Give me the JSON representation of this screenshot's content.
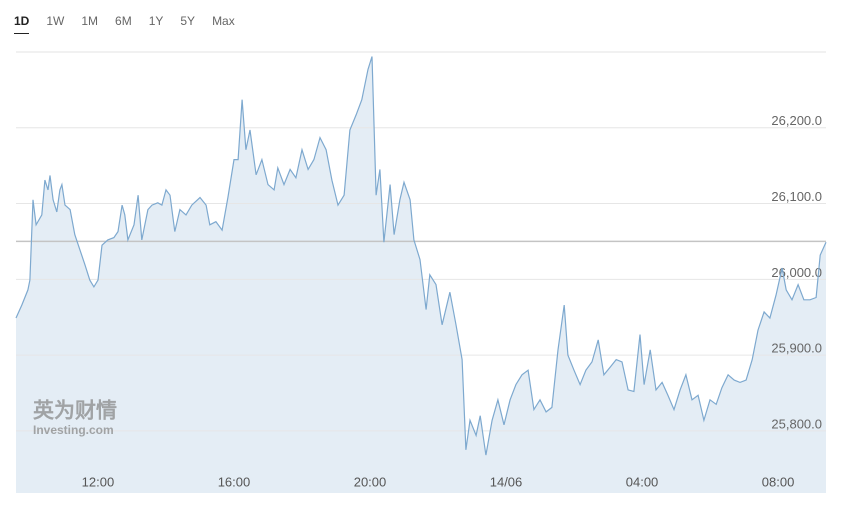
{
  "chart_data": {
    "type": "area",
    "range_options": [
      "1D",
      "1W",
      "1M",
      "6M",
      "1Y",
      "5Y",
      "Max"
    ],
    "selected_range_index": 0,
    "watermark": "英为财情",
    "watermark_sub": "Investing.com",
    "color": "#7ea9cf",
    "fill_color": "#e4edf5",
    "grid": true,
    "xlim": [
      -2.41,
      21.41
    ],
    "xticks": [
      {
        "value": 0,
        "label": "12:00"
      },
      {
        "value": 4,
        "label": "16:00"
      },
      {
        "value": 8,
        "label": "20:00"
      },
      {
        "value": 12,
        "label": "14/06"
      },
      {
        "value": 16,
        "label": "04:00"
      },
      {
        "value": 20,
        "label": "08:00"
      }
    ],
    "ylim": [
      25718,
      26300
    ],
    "yticks": [
      {
        "value": 25800,
        "label": "25,800.0"
      },
      {
        "value": 25900,
        "label": "25,900.0"
      },
      {
        "value": 26000,
        "label": "26,000.0"
      },
      {
        "value": 26100,
        "label": "26,100.0"
      },
      {
        "value": 26200,
        "label": "26,200.0"
      }
    ],
    "reference_line": 26050,
    "x": [
      -2.41,
      -2.24,
      -2.06,
      -2.0,
      -1.91,
      -1.82,
      -1.65,
      -1.56,
      -1.47,
      -1.41,
      -1.32,
      -1.21,
      -1.12,
      -1.06,
      -0.97,
      -0.82,
      -0.68,
      -0.53,
      -0.38,
      -0.24,
      -0.12,
      0,
      0.12,
      0.29,
      0.47,
      0.59,
      0.71,
      0.79,
      0.88,
      1.06,
      1.18,
      1.29,
      1.47,
      1.59,
      1.76,
      1.88,
      2.0,
      2.12,
      2.26,
      2.41,
      2.59,
      2.76,
      3.0,
      3.18,
      3.29,
      3.47,
      3.65,
      3.82,
      4.0,
      4.12,
      4.24,
      4.35,
      4.47,
      4.65,
      4.82,
      5.0,
      5.18,
      5.29,
      5.47,
      5.65,
      5.82,
      6.0,
      6.18,
      6.35,
      6.53,
      6.71,
      6.88,
      7.06,
      7.24,
      7.41,
      7.59,
      7.76,
      7.94,
      8.06,
      8.18,
      8.29,
      8.41,
      8.59,
      8.71,
      8.88,
      9.0,
      9.18,
      9.29,
      9.47,
      9.65,
      9.76,
      9.94,
      10.12,
      10.35,
      10.53,
      10.71,
      10.82,
      10.94,
      11.12,
      11.24,
      11.41,
      11.59,
      11.76,
      11.94,
      12.12,
      12.29,
      12.47,
      12.65,
      12.82,
      13.0,
      13.18,
      13.35,
      13.53,
      13.71,
      13.82,
      14.0,
      14.18,
      14.35,
      14.53,
      14.71,
      14.88,
      15.06,
      15.24,
      15.41,
      15.59,
      15.76,
      15.94,
      16.06,
      16.24,
      16.41,
      16.59,
      16.76,
      16.94,
      17.12,
      17.29,
      17.47,
      17.65,
      17.82,
      18.0,
      18.18,
      18.35,
      18.53,
      18.71,
      18.88,
      19.06,
      19.24,
      19.41,
      19.59,
      19.76,
      19.94,
      20.12,
      20.24,
      20.41,
      20.59,
      20.76,
      20.94,
      21.12,
      21.24,
      21.41
    ],
    "values": [
      25949,
      25966,
      25986,
      25999,
      26105,
      26072,
      26085,
      26131,
      26118,
      26137,
      26105,
      26089,
      26118,
      26125,
      26098,
      26092,
      26059,
      26039,
      26019,
      25999,
      25990,
      25999,
      26045,
      26052,
      26055,
      26063,
      26098,
      26085,
      26052,
      26072,
      26111,
      26052,
      26092,
      26098,
      26101,
      26098,
      26118,
      26111,
      26063,
      26092,
      26085,
      26098,
      26108,
      26098,
      26072,
      26076,
      26065,
      26108,
      26158,
      26158,
      26237,
      26171,
      26197,
      26138,
      26158,
      26125,
      26118,
      26147,
      26125,
      26145,
      26134,
      26171,
      26145,
      26158,
      26187,
      26171,
      26131,
      26098,
      26111,
      26197,
      26217,
      26237,
      26277,
      26294,
      26111,
      26145,
      26049,
      26125,
      26059,
      26105,
      26128,
      26105,
      26052,
      26026,
      25960,
      26006,
      25993,
      25940,
      25983,
      25940,
      25894,
      25775,
      25814,
      25794,
      25820,
      25768,
      25814,
      25841,
      25808,
      25841,
      25861,
      25874,
      25880,
      25828,
      25841,
      25825,
      25831,
      25907,
      25966,
      25900,
      25880,
      25861,
      25880,
      25891,
      25920,
      25874,
      25884,
      25894,
      25891,
      25854,
      25852,
      25927,
      25861,
      25907,
      25854,
      25864,
      25847,
      25828,
      25854,
      25874,
      25841,
      25847,
      25814,
      25841,
      25835,
      25857,
      25874,
      25867,
      25864,
      25867,
      25894,
      25933,
      25957,
      25949,
      25979,
      26015,
      25986,
      25973,
      25993,
      25973,
      25973,
      25976,
      26032,
      26049
    ]
  }
}
